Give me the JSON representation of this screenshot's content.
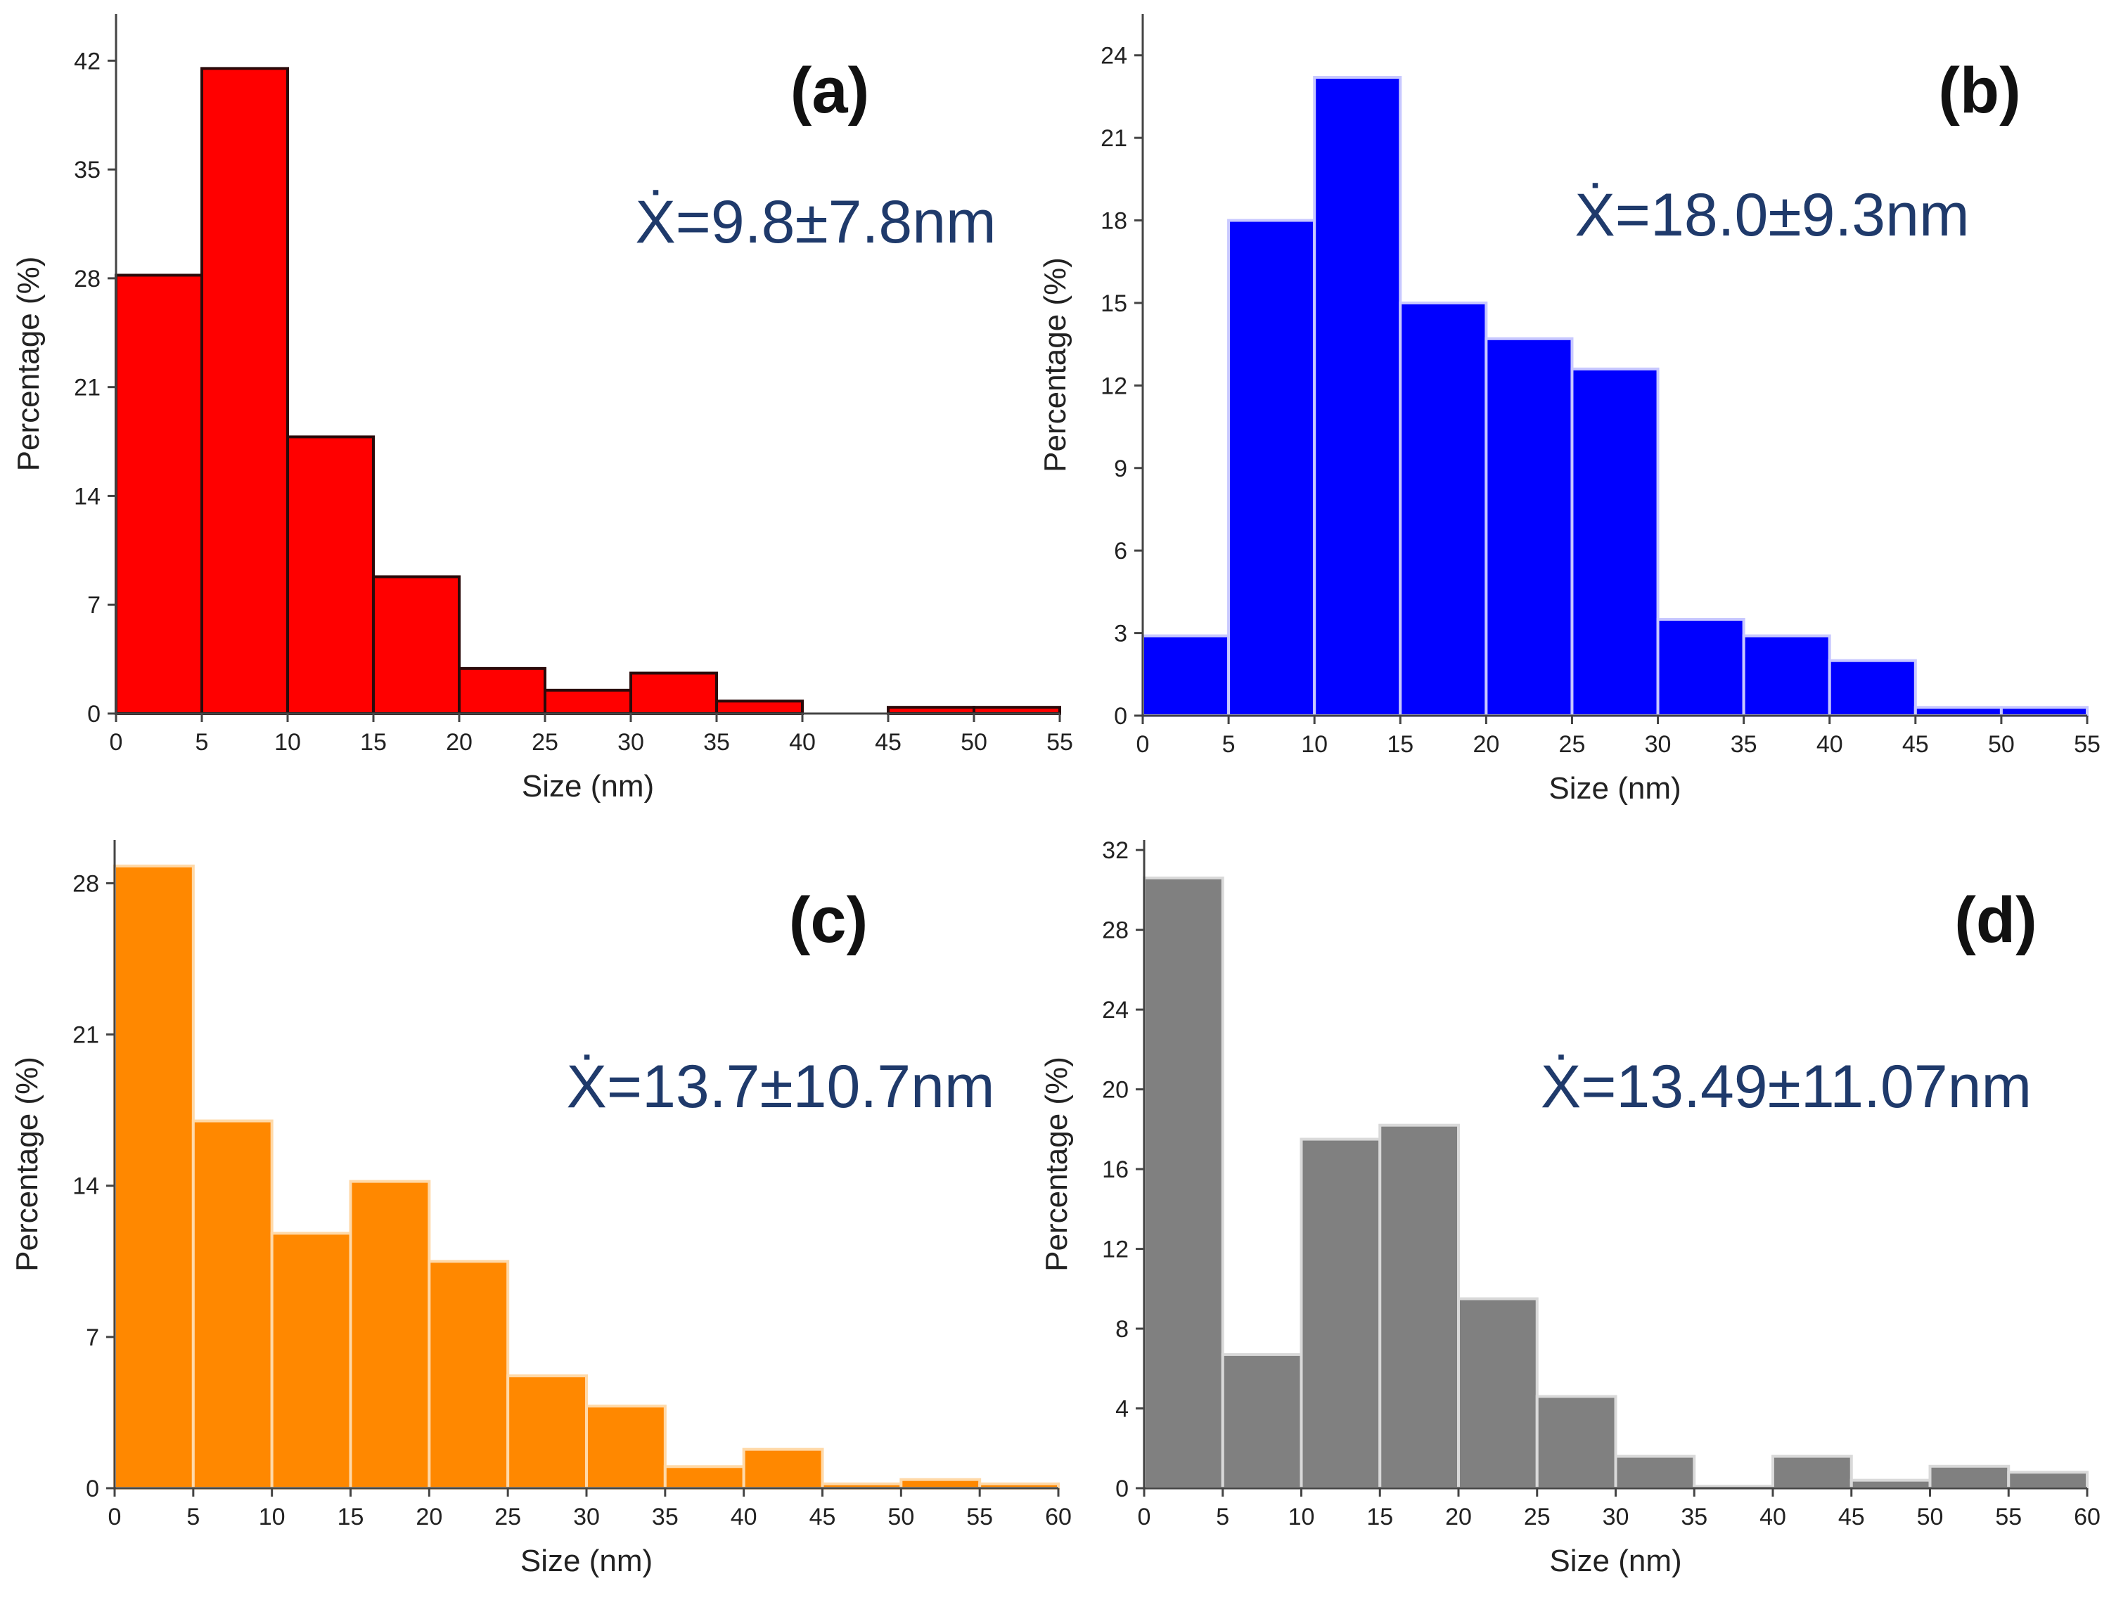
{
  "chart_data": [
    {
      "type": "bar",
      "panel_label": "(a)",
      "annotation": "Ẋ=9.8±7.8nm",
      "xlabel": "Size (nm)",
      "ylabel": "Percentage (%)",
      "bin_edges": [
        0,
        5,
        10,
        15,
        20,
        25,
        30,
        35,
        40,
        45,
        50,
        55
      ],
      "values": [
        28.2,
        41.5,
        17.8,
        8.8,
        2.9,
        1.5,
        2.6,
        0.8,
        0,
        0.4,
        0.4
      ],
      "xlim": [
        0,
        55
      ],
      "ylim": [
        0,
        45
      ],
      "xticks": [
        "0",
        "5",
        "10",
        "15",
        "20",
        "25",
        "30",
        "35",
        "40",
        "45",
        "50",
        "55"
      ],
      "yticks": [
        "0",
        "7",
        "14",
        "21",
        "28",
        "35",
        "42"
      ],
      "ytick_values": [
        0,
        7,
        14,
        21,
        28,
        35,
        42
      ],
      "color": "#ff0000",
      "edge_color": "#2a0a0a",
      "grid": false
    },
    {
      "type": "bar",
      "panel_label": "(b)",
      "annotation": "Ẋ=18.0±9.3nm",
      "xlabel": "Size (nm)",
      "ylabel": "Percentage (%)",
      "bin_edges": [
        0,
        5,
        10,
        15,
        20,
        25,
        30,
        35,
        40,
        45,
        50,
        55
      ],
      "values": [
        2.9,
        18.0,
        23.2,
        15.0,
        13.7,
        12.6,
        3.5,
        2.9,
        2.0,
        0.3,
        0.3
      ],
      "xlim": [
        0,
        55
      ],
      "ylim": [
        0,
        25.5
      ],
      "xticks": [
        "0",
        "5",
        "10",
        "15",
        "20",
        "25",
        "30",
        "35",
        "40",
        "45",
        "50",
        "55"
      ],
      "yticks": [
        "0",
        "3",
        "6",
        "9",
        "12",
        "15",
        "18",
        "21",
        "24"
      ],
      "ytick_values": [
        0,
        3,
        6,
        9,
        12,
        15,
        18,
        21,
        24
      ],
      "color": "#0000ff",
      "edge_color": "#c8c8ff",
      "grid": false
    },
    {
      "type": "bar",
      "panel_label": "(c)",
      "annotation": "Ẋ=13.7±10.7nm",
      "xlabel": "Size (nm)",
      "ylabel": "Percentage (%)",
      "bin_edges": [
        0,
        5,
        10,
        15,
        20,
        25,
        30,
        35,
        40,
        45,
        50,
        55,
        60
      ],
      "values": [
        28.8,
        17.0,
        11.8,
        14.2,
        10.5,
        5.2,
        3.8,
        1.0,
        1.8,
        0.2,
        0.4,
        0.2
      ],
      "xlim": [
        0,
        60
      ],
      "ylim": [
        0,
        30
      ],
      "xticks": [
        "0",
        "5",
        "10",
        "15",
        "20",
        "25",
        "30",
        "35",
        "40",
        "45",
        "50",
        "55",
        "60"
      ],
      "yticks": [
        "0",
        "7",
        "14",
        "21",
        "28"
      ],
      "ytick_values": [
        0,
        7,
        14,
        21,
        28
      ],
      "color": "#ff8800",
      "edge_color": "#ffd9a8",
      "grid": false
    },
    {
      "type": "bar",
      "panel_label": "(d)",
      "annotation": "Ẋ=13.49±11.07nm",
      "xlabel": "Size (nm)",
      "ylabel": "Percentage (%)",
      "bin_edges": [
        0,
        5,
        10,
        15,
        20,
        25,
        30,
        35,
        40,
        45,
        50,
        55,
        60
      ],
      "values": [
        30.6,
        6.7,
        17.5,
        18.2,
        9.5,
        4.6,
        1.6,
        0.1,
        1.6,
        0.4,
        1.1,
        0.8
      ],
      "xlim": [
        0,
        60
      ],
      "ylim": [
        0,
        32.5
      ],
      "xticks": [
        "0",
        "5",
        "10",
        "15",
        "20",
        "25",
        "30",
        "35",
        "40",
        "45",
        "50",
        "55",
        "60"
      ],
      "yticks": [
        "0",
        "4",
        "8",
        "12",
        "16",
        "20",
        "24",
        "28",
        "32"
      ],
      "ytick_values": [
        0,
        4,
        8,
        12,
        16,
        20,
        24,
        28,
        32
      ],
      "color": "#808080",
      "edge_color": "#d9d9d9",
      "grid": false
    }
  ]
}
